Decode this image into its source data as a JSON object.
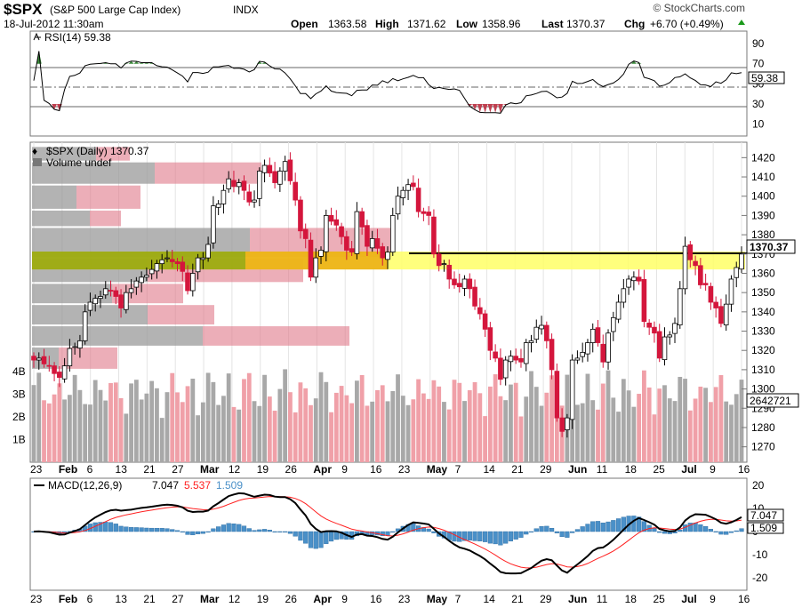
{
  "header": {
    "symbol": "$SPX",
    "name": "(S&P 500 Large Cap Index)",
    "exchange": "INDX",
    "brand": "© StockCharts.com",
    "date": "18-Jul-2012 11:30am",
    "quote": {
      "open_label": "Open",
      "open": "1363.58",
      "high_label": "High",
      "high": "1371.62",
      "low_label": "Low",
      "low": "1358.96",
      "last_label": "Last",
      "last": "1370.37",
      "chg_label": "Chg",
      "chg": "+6.70 (+0.49%)"
    }
  },
  "rsi_panel": {
    "legend": "RSI(14) 59.38",
    "value_label": "59.38",
    "levels": [
      70,
      50,
      30
    ],
    "ticks": [
      "90",
      "70",
      "50",
      "30",
      "10"
    ]
  },
  "price_panel": {
    "legend": "$SPX (Daily) 1370.37",
    "volume_legend": "Volume undef",
    "last_label": "1370.37",
    "volume_label": "2642721",
    "volume_ticks": [
      "4B",
      "3B",
      "2B",
      "1B"
    ],
    "price_ticks": [
      "1420",
      "1410",
      "1400",
      "1390",
      "1380",
      "1370",
      "1360",
      "1350",
      "1340",
      "1330",
      "1320",
      "1310",
      "1300",
      "1290",
      "1280",
      "1270"
    ],
    "highlight_line": 1370.37
  },
  "macd_panel": {
    "legend_name": "MACD(12,26,9)",
    "legend_macd": "7.047",
    "legend_signal": "5.537",
    "legend_hist": "1.509",
    "macd_label": "7.047",
    "hist_label": "1.509",
    "ticks": [
      "20",
      "10",
      "0",
      "-10",
      "-20"
    ]
  },
  "x_axis": {
    "labels": [
      {
        "text": "23",
        "bold": false
      },
      {
        "text": "Feb",
        "bold": true
      },
      {
        "text": "6",
        "bold": false
      },
      {
        "text": "13",
        "bold": false
      },
      {
        "text": "21",
        "bold": false
      },
      {
        "text": "27",
        "bold": false
      },
      {
        "text": "Mar",
        "bold": true
      },
      {
        "text": "12",
        "bold": false
      },
      {
        "text": "19",
        "bold": false
      },
      {
        "text": "26",
        "bold": false
      },
      {
        "text": "Apr",
        "bold": true
      },
      {
        "text": "9",
        "bold": false
      },
      {
        "text": "16",
        "bold": false
      },
      {
        "text": "23",
        "bold": false
      },
      {
        "text": "May",
        "bold": true
      },
      {
        "text": "7",
        "bold": false
      },
      {
        "text": "14",
        "bold": false
      },
      {
        "text": "21",
        "bold": false
      },
      {
        "text": "29",
        "bold": false
      },
      {
        "text": "Jun",
        "bold": true
      },
      {
        "text": "11",
        "bold": false
      },
      {
        "text": "18",
        "bold": false
      },
      {
        "text": "25",
        "bold": false
      },
      {
        "text": "Jul",
        "bold": true
      },
      {
        "text": "9",
        "bold": false
      },
      {
        "text": "16",
        "bold": false
      }
    ]
  },
  "colors": {
    "up": "#000000",
    "down": "#d4163c",
    "highlight": "#ffff66",
    "rsi_line": "#000000",
    "macd_line": "#000000",
    "signal_line": "#ff2020",
    "histogram": "#4a90c8",
    "volume_up": "#a8a8a8",
    "volume_down": "#f0a0a8"
  },
  "chart_data": {
    "type": "candlestick",
    "x_start": "2012-01-23",
    "x_end": "2012-07-18",
    "ylim": [
      1262,
      1428
    ],
    "close": [
      1315,
      1316,
      1313,
      1312,
      1308,
      1306,
      1312,
      1321,
      1322,
      1325,
      1340,
      1345,
      1347,
      1348,
      1352,
      1351,
      1348,
      1342,
      1350,
      1352,
      1356,
      1358,
      1359,
      1362,
      1365,
      1367,
      1368,
      1366,
      1365,
      1361,
      1351,
      1360,
      1368,
      1368,
      1375,
      1395,
      1396,
      1403,
      1409,
      1405,
      1407,
      1403,
      1397,
      1398,
      1413,
      1416,
      1412,
      1407,
      1413,
      1418,
      1408,
      1398,
      1382,
      1378,
      1358,
      1368,
      1372,
      1390,
      1387,
      1385,
      1379,
      1372,
      1371,
      1392,
      1384,
      1374,
      1378,
      1373,
      1368,
      1371,
      1390,
      1400,
      1403,
      1406,
      1405,
      1392,
      1391,
      1390,
      1370,
      1364,
      1365,
      1357,
      1354,
      1353,
      1357,
      1352,
      1343,
      1339,
      1331,
      1320,
      1316,
      1305,
      1315,
      1317,
      1315,
      1314,
      1324,
      1325,
      1332,
      1333,
      1325,
      1310,
      1285,
      1278,
      1285,
      1315,
      1316,
      1319,
      1324,
      1331,
      1324,
      1314,
      1329,
      1337,
      1345,
      1352,
      1357,
      1358,
      1356,
      1335,
      1332,
      1329,
      1316,
      1327,
      1328,
      1334,
      1352,
      1374,
      1367,
      1364,
      1354,
      1354,
      1345,
      1342,
      1334,
      1344,
      1357,
      1363,
      1370
    ]
  }
}
